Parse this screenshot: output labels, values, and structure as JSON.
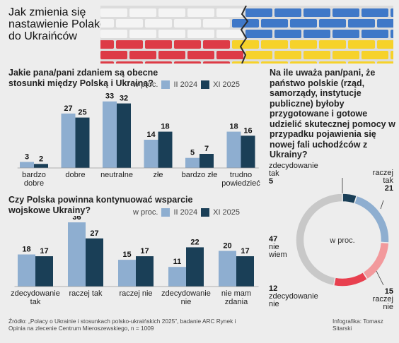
{
  "title": "Jak zmienia się nastawienie Polaków do Ukraińców",
  "colors": {
    "series_a": "#8eaed0",
    "series_b": "#1a3f57",
    "bg": "#ededed"
  },
  "chart_data": [
    {
      "type": "bar",
      "title": "Jakie pana/pani zdaniem są obecne stosunki między Polską i Ukrainą?",
      "unit_note": "w proc.",
      "categories": [
        "bardzo dobre",
        "dobre",
        "neutralne",
        "złe",
        "bardzo złe",
        "trudno powiedzieć"
      ],
      "series": [
        {
          "name": "II 2024",
          "values": [
            3,
            27,
            33,
            14,
            5,
            18
          ]
        },
        {
          "name": "XI 2025",
          "values": [
            2,
            25,
            32,
            18,
            7,
            16
          ]
        }
      ],
      "ylim": [
        0,
        35
      ],
      "legend": "top-right"
    },
    {
      "type": "bar",
      "title": "Czy Polska powinna kontynuować wsparcie wojskowe Ukrainy?",
      "unit_note": "w proc.",
      "categories": [
        "zdecydowanie tak",
        "raczej tak",
        "raczej nie",
        "zdecydowanie nie",
        "nie mam zdania"
      ],
      "series": [
        {
          "name": "II 2024",
          "values": [
            18,
            36,
            15,
            11,
            20
          ]
        },
        {
          "name": "XI 2025",
          "values": [
            17,
            27,
            17,
            22,
            17
          ]
        }
      ],
      "ylim": [
        0,
        38
      ],
      "legend": "top-right"
    },
    {
      "type": "pie",
      "title": "Na ile uważa pan/pani, że państwo polskie (rząd, samorządy, instytucje publiczne) byłoby przygotowane i gotowe udzielić skutecznej pomocy w przypadku pojawienia się nowej fali uchodźców z Ukrainy?",
      "center_label": "w proc.",
      "slices": [
        {
          "label": "zdecydowanie tak",
          "value": 5,
          "color": "#1a3f57"
        },
        {
          "label": "raczej tak",
          "value": 21,
          "color": "#8eaed0"
        },
        {
          "label": "raczej nie",
          "value": 15,
          "color": "#f2999c"
        },
        {
          "label": "zdecydowanie nie",
          "value": 12,
          "color": "#e8404f"
        },
        {
          "label": "nie wiem",
          "value": 47,
          "color": "#c8c8c8"
        }
      ]
    }
  ],
  "source": "Źródło: „Polacy o Ukrainie i stosunkach polsko-ukraińskich 2025”, badanie ARC Rynek i Opinia na zlecenie Centrum Mieroszewskiego, n = 1009",
  "credit": "Infografika: Tomasz Sitarski"
}
